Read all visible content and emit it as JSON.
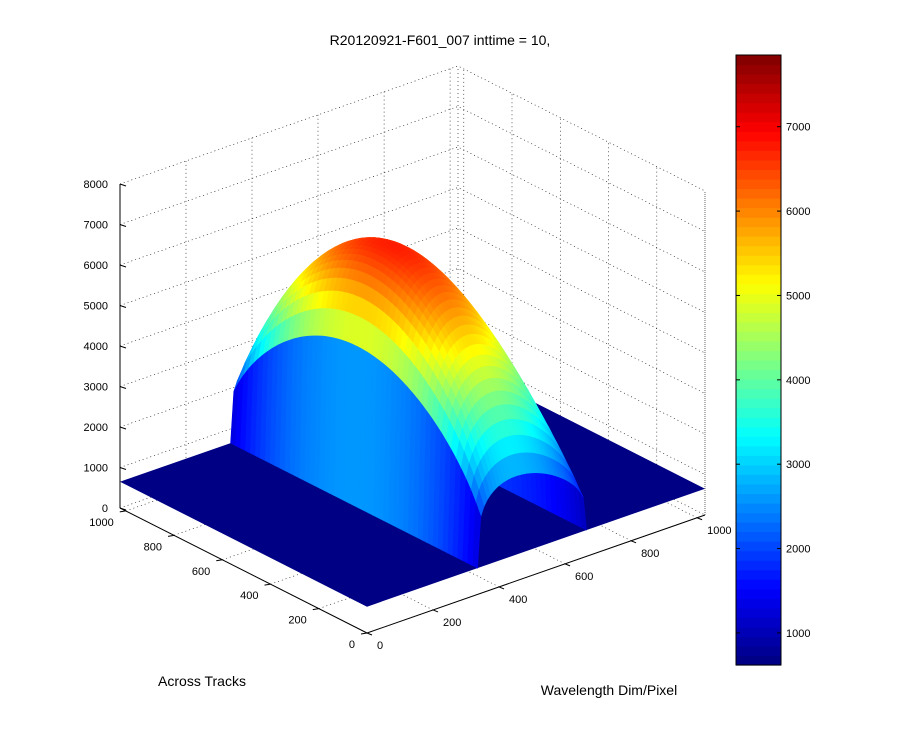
{
  "chart_data": {
    "type": "surface3d",
    "title": "R20120921-F601_007 inttime = 10,",
    "xlabel": "Wavelength Dim/Pixel",
    "ylabel": "Across Tracks",
    "zlabel": "",
    "xlim": [
      0,
      1024
    ],
    "ylim": [
      0,
      1024
    ],
    "zlim": [
      0,
      8000
    ],
    "x_ticks": [
      "0",
      "200",
      "400",
      "600",
      "800",
      "1000"
    ],
    "y_ticks": [
      "0",
      "200",
      "400",
      "600",
      "800",
      "1000"
    ],
    "z_ticks": [
      "0",
      "1000",
      "2000",
      "3000",
      "4000",
      "5000",
      "6000",
      "7000",
      "8000"
    ],
    "grid": true,
    "colormap": "jet",
    "colorbar": {
      "range": [
        620,
        7850
      ],
      "ticks": [
        "1000",
        "2000",
        "3000",
        "4000",
        "5000",
        "6000",
        "7000"
      ]
    },
    "surface": {
      "baseline": 650,
      "signal_across_track_range": [
        0,
        1024
      ],
      "signal_wavelength_range": [
        335,
        665
      ],
      "peak_value": 7800,
      "peak_across_track": 600,
      "peak_wavelength": 470,
      "description_profile": "dome-shaped illuminated region along wavelength pixels ~335-665, flat baseline elsewhere"
    }
  }
}
